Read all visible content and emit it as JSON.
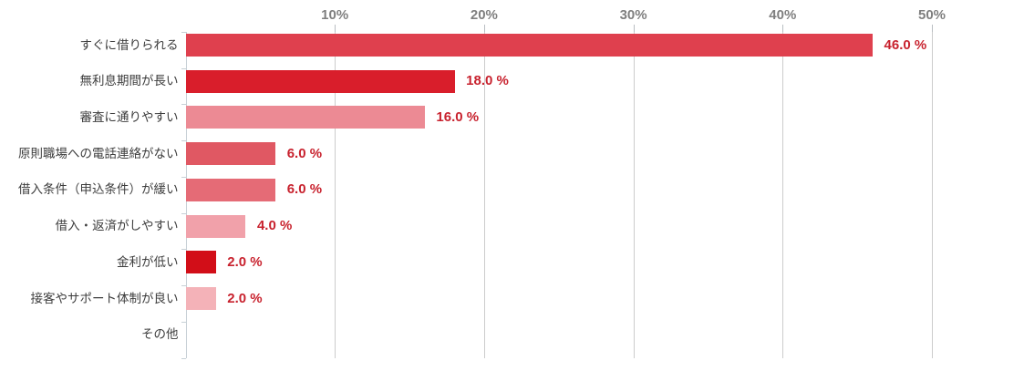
{
  "chart_data": {
    "type": "bar",
    "orientation": "horizontal",
    "title": "",
    "xlabel": "",
    "ylabel": "",
    "xlim": [
      0,
      50
    ],
    "grid": true,
    "categories": [
      "すぐに借りられる",
      "無利息期間が長い",
      "審査に通りやすい",
      "原則職場への電話連絡がない",
      "借入条件（申込条件）が緩い",
      "借入・返済がしやすい",
      "金利が低い",
      "接客やサポート体制が良い",
      "その他"
    ],
    "values": [
      46,
      18,
      16,
      6,
      6,
      4,
      2,
      2,
      0
    ],
    "value_labels": [
      "46.0 %",
      "18.0 %",
      "16.0 %",
      "6.0 %",
      "6.0 %",
      "4.0 %",
      "2.0 %",
      "2.0 %",
      ""
    ],
    "bar_colors": [
      "#df404e",
      "#d91e2b",
      "#ec8a94",
      "#e05863",
      "#e56b76",
      "#f1a1aa",
      "#d20e18",
      "#f4b2b8",
      ""
    ],
    "x_ticks": [
      {
        "value": 10,
        "label": "10%"
      },
      {
        "value": 20,
        "label": "20%"
      },
      {
        "value": 30,
        "label": "30%"
      },
      {
        "value": 40,
        "label": "40%"
      },
      {
        "value": 50,
        "label": "50%"
      }
    ],
    "colors": {
      "x_tick_label": "#7f7f7f",
      "gridline": "#cccccc",
      "axis_line": "#c7d0d6",
      "axis_tick": "#b9bec2",
      "category_label": "#3d3d3d",
      "value_label": "#c8222e",
      "background": "#ffffff"
    }
  }
}
